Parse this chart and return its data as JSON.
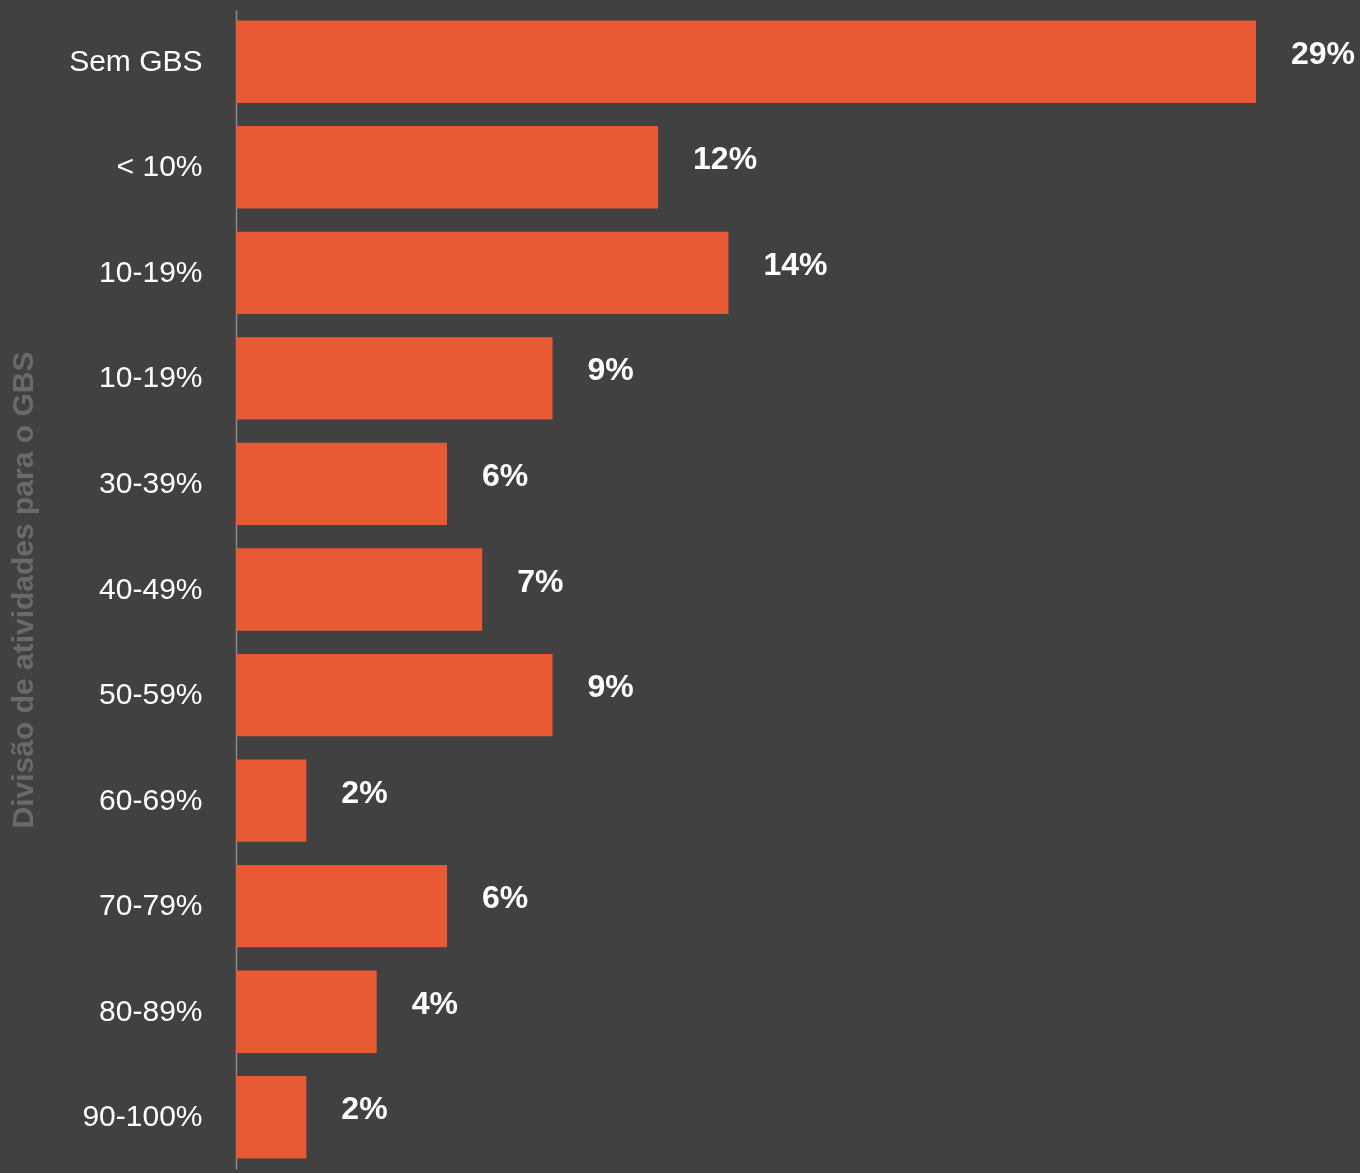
{
  "chart_data": {
    "type": "bar",
    "orientation": "horizontal",
    "ylabel": "Divisão de atividades para o GBS",
    "categories": [
      "Sem GBS",
      "< 10%",
      "10-19%",
      "10-19%",
      "30-39%",
      "40-49%",
      "50-59%",
      "60-69%",
      "70-79%",
      "80-89%",
      "90-100%"
    ],
    "values": [
      29,
      12,
      14,
      9,
      6,
      7,
      9,
      2,
      6,
      4,
      2
    ],
    "value_labels": [
      "29%",
      "12%",
      "14%",
      "9%",
      "6%",
      "7%",
      "9%",
      "2%",
      "6%",
      "4%",
      "2%"
    ],
    "color": "#e85a35"
  }
}
